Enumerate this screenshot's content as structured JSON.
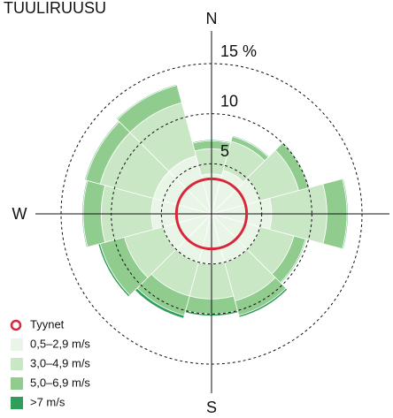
{
  "chart_data": {
    "type": "windrose",
    "title": "TUULIRUUSU",
    "compass": {
      "N": "N",
      "W": "W",
      "S": "S"
    },
    "directions": [
      0,
      30,
      60,
      90,
      120,
      150,
      180,
      210,
      240,
      270,
      300,
      330
    ],
    "series": [
      {
        "name": "0,5–2,9 m/s",
        "color": "#e9f5e6",
        "values": [
          4,
          4.5,
          5,
          6,
          5,
          5,
          5,
          5,
          5,
          6,
          6,
          6
        ]
      },
      {
        "name": "3,0–4,9 m/s",
        "color": "#c9e7c5",
        "values": [
          2.5,
          3,
          4,
          5.5,
          3.5,
          4,
          3.5,
          3.5,
          4,
          5,
          5.5,
          5.5
        ]
      },
      {
        "name": "5,0–6,9 m/s",
        "color": "#8fcc8e",
        "values": [
          0.8,
          0.5,
          1,
          2,
          1.2,
          1.5,
          1.5,
          2,
          2.5,
          1.8,
          1.5,
          1.8
        ]
      },
      {
        "name": ">7 m/s",
        "color": "#2f9e5a",
        "values": [
          0.1,
          0.1,
          0.1,
          0.1,
          0.1,
          0.2,
          0.2,
          0.3,
          0.2,
          0.1,
          0.1,
          0.1
        ]
      }
    ],
    "calm": {
      "name": "Tyynet",
      "color": "#d9263c",
      "value": 3.5
    },
    "rlim": [
      0,
      15
    ],
    "rticks": [
      5,
      10,
      {
        "value": 15,
        "label": "15 %"
      }
    ]
  }
}
